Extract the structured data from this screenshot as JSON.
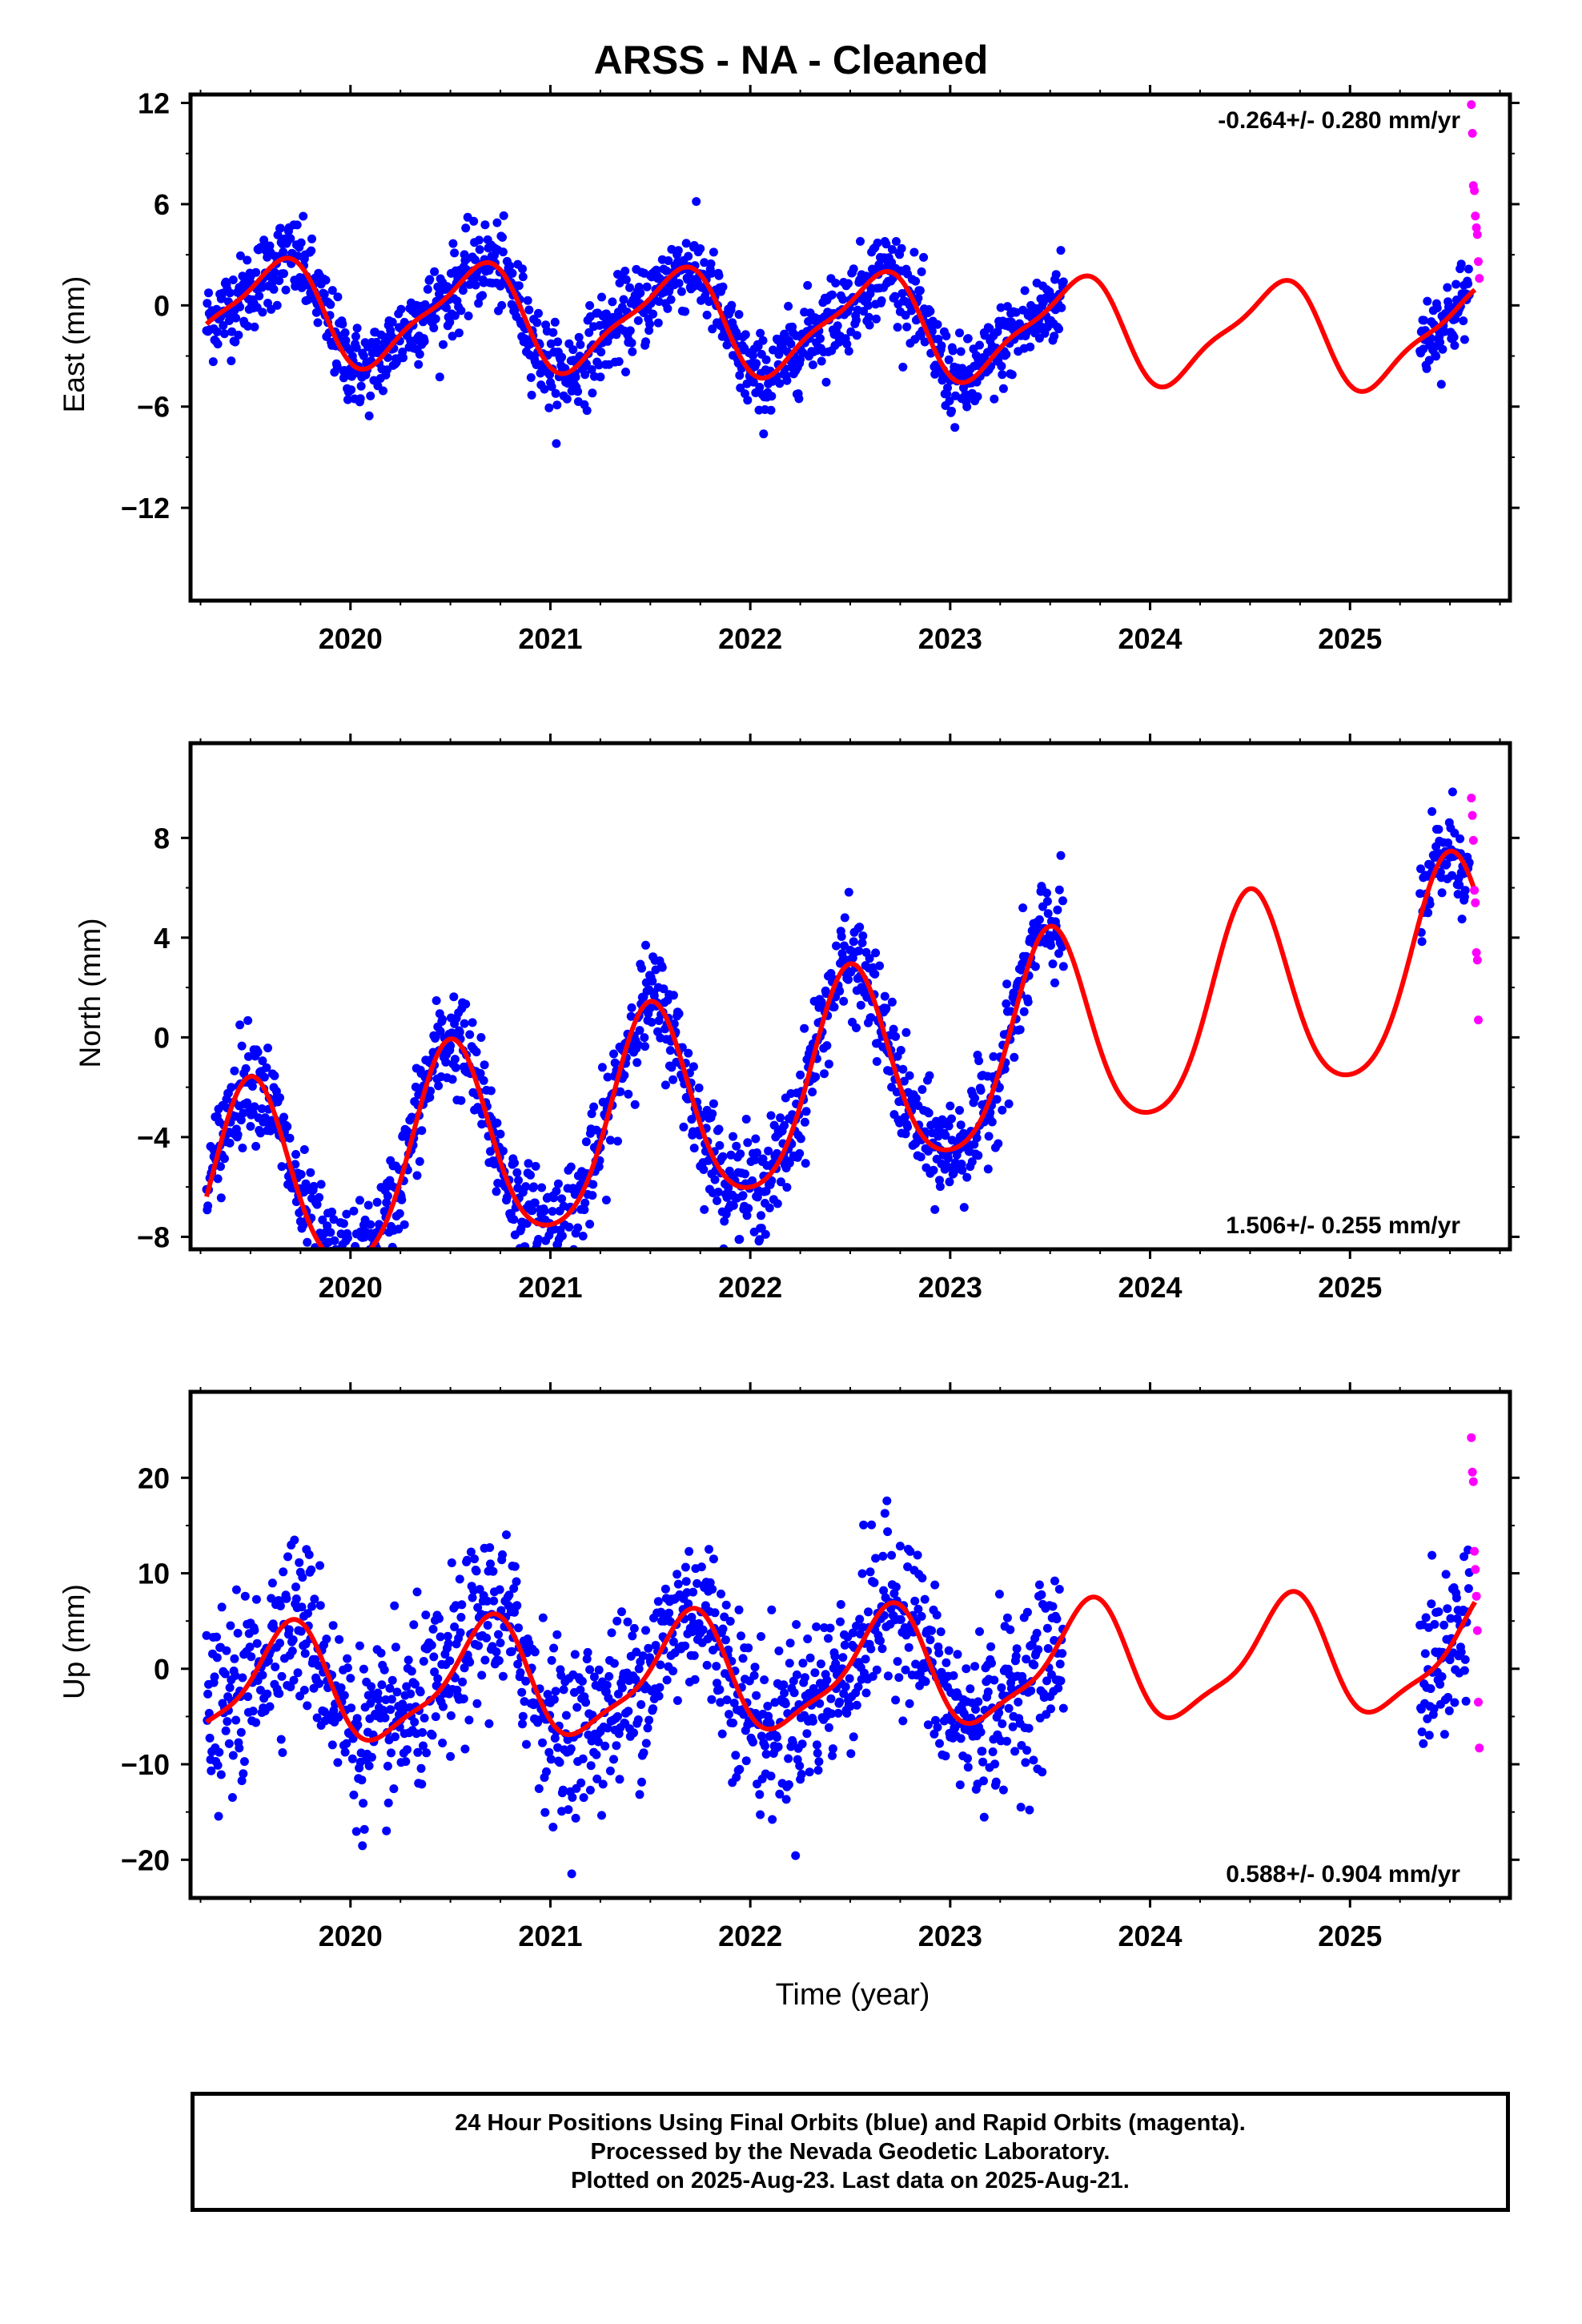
{
  "chart_data": [
    {
      "type": "scatter",
      "title": "ARSS  - NA - Cleaned",
      "ylabel": "East (mm)",
      "xlabel": "",
      "xlim": [
        2019.2,
        2025.8
      ],
      "ylim": [
        -17.5,
        12.5
      ],
      "yticks": [
        12,
        6,
        0,
        -6,
        -12
      ],
      "ytick_labels": [
        "12",
        "6",
        "0",
        "−6",
        "−12"
      ],
      "xticks": [
        2020,
        2021,
        2022,
        2023,
        2024,
        2025
      ],
      "xtick_labels": [
        "2020",
        "2021",
        "2022",
        "2023",
        "2024",
        "2025"
      ],
      "rate_label": "-0.264+/- 0.280 mm/yr",
      "rate_position": "top-right",
      "model": {
        "offset": -0.3,
        "rate": -0.264,
        "annual_amp": 2.9,
        "annual_peak": 0.62,
        "semi_amp": 0.8,
        "semi_peak": 0.25
      },
      "series": [
        {
          "name": "Final Orbits",
          "color": "#0000ff",
          "segments": [
            [
              2019.28,
              2023.57
            ],
            [
              2025.35,
              2025.6
            ]
          ],
          "scatter": 1.25,
          "points_per_year": 300
        },
        {
          "name": "Rapid Orbits",
          "color": "#ff00ff",
          "x": [
            2025.607,
            2025.612,
            2025.617,
            2025.622,
            2025.627,
            2025.632,
            2025.637,
            2025.642,
            2025.647
          ],
          "y": [
            11.9,
            10.2,
            7.1,
            6.8,
            5.3,
            4.6,
            4.2,
            2.6,
            1.6
          ]
        }
      ],
      "model_range": [
        2019.28,
        2025.63
      ],
      "model_color": "#ff0000"
    },
    {
      "type": "scatter",
      "title": "",
      "ylabel": "North (mm)",
      "xlabel": "",
      "xlim": [
        2019.2,
        2025.8
      ],
      "ylim": [
        -8.5,
        11.8
      ],
      "yticks": [
        8,
        4,
        0,
        -4,
        -8
      ],
      "ytick_labels": [
        "8",
        "4",
        "0",
        "−4",
        "−8"
      ],
      "xticks": [
        2020,
        2021,
        2022,
        2023,
        2024,
        2025
      ],
      "xtick_labels": [
        "2020",
        "2021",
        "2022",
        "2023",
        "2024",
        "2025"
      ],
      "rate_label": "1.506+/- 0.255 mm/yr",
      "rate_position": "bottom-right",
      "model": {
        "offset": -6.6,
        "rate": 1.506,
        "annual_amp": 4.1,
        "annual_peak": 0.5,
        "semi_amp": 0.6,
        "semi_peak": 0.0
      },
      "series": [
        {
          "name": "Final Orbits",
          "color": "#0000ff",
          "segments": [
            [
              2019.28,
              2023.57
            ],
            [
              2025.35,
              2025.6
            ]
          ],
          "scatter": 1.05,
          "points_per_year": 300
        },
        {
          "name": "Rapid Orbits",
          "color": "#ff00ff",
          "x": [
            2025.607,
            2025.612,
            2025.617,
            2025.622,
            2025.627,
            2025.632,
            2025.637,
            2025.642
          ],
          "y": [
            9.6,
            8.9,
            7.9,
            5.9,
            5.4,
            3.4,
            3.1,
            0.7
          ]
        }
      ],
      "model_range": [
        2019.28,
        2025.63
      ],
      "model_color": "#ff0000"
    },
    {
      "type": "scatter",
      "title": "",
      "ylabel": "Up (mm)",
      "xlabel": "Time (year)",
      "xlim": [
        2019.2,
        2025.8
      ],
      "ylim": [
        -24,
        29
      ],
      "yticks": [
        20,
        10,
        0,
        -10,
        -20
      ],
      "ytick_labels": [
        "20",
        "10",
        "0",
        "−10",
        "−20"
      ],
      "xticks": [
        2020,
        2021,
        2022,
        2023,
        2024,
        2025
      ],
      "xtick_labels": [
        "2020",
        "2021",
        "2022",
        "2023",
        "2024",
        "2025"
      ],
      "rate_label": "0.588+/- 0.904 mm/yr",
      "rate_position": "bottom-right",
      "model": {
        "offset": -2.3,
        "rate": 0.588,
        "annual_amp": 5.9,
        "annual_peak": 0.68,
        "semi_amp": 1.6,
        "semi_peak": 0.25
      },
      "series": [
        {
          "name": "Final Orbits",
          "color": "#0000ff",
          "segments": [
            [
              2019.28,
              2023.57
            ],
            [
              2025.35,
              2025.6
            ]
          ],
          "scatter": 4.4,
          "points_per_year": 300
        },
        {
          "name": "Rapid Orbits",
          "color": "#ff00ff",
          "x": [
            2025.607,
            2025.612,
            2025.617,
            2025.622,
            2025.627,
            2025.632,
            2025.637,
            2025.642,
            2025.647
          ],
          "y": [
            24.2,
            20.6,
            19.6,
            12.3,
            10.4,
            7.6,
            4.0,
            -3.5,
            -8.3
          ]
        }
      ],
      "model_range": [
        2019.28,
        2025.63
      ],
      "model_color": "#ff0000"
    }
  ],
  "footer": {
    "line1": "24 Hour Positions Using Final Orbits (blue) and Rapid Orbits (magenta).",
    "line2": "Processed by the Nevada Geodetic Laboratory.",
    "line3": "Plotted on 2025-Aug-23. Last data on 2025-Aug-21."
  },
  "colors": {
    "final": "#0000ff",
    "rapid": "#ff00ff",
    "model": "#ff0000",
    "axes": "#000000"
  }
}
